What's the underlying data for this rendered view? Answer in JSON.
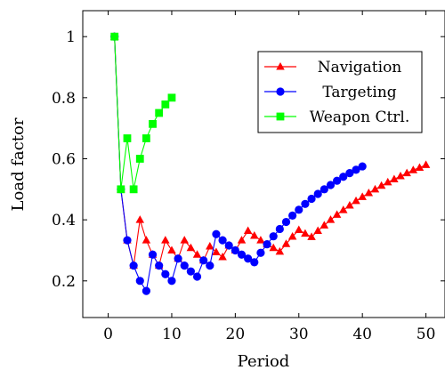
{
  "chart_data": {
    "type": "line",
    "xlabel": "Period",
    "ylabel": "Load factor",
    "xlim": [
      -4,
      53
    ],
    "ylim": [
      0.08,
      1.085
    ],
    "xticks": [
      0,
      10,
      20,
      30,
      40,
      50
    ],
    "yticks": [
      0.2,
      0.4,
      0.6,
      0.8,
      1
    ],
    "grid": false,
    "legend_position": "top-right",
    "series": [
      {
        "name": "Navigation",
        "color": "#ff0000",
        "marker": "triangle",
        "x": [
          1,
          2,
          3,
          4,
          5,
          6,
          7,
          8,
          9,
          10,
          11,
          12,
          13,
          14,
          15,
          16,
          17,
          18,
          19,
          20,
          21,
          22,
          23,
          24,
          25,
          26,
          27,
          28,
          29,
          30,
          31,
          32,
          33,
          34,
          35,
          36,
          37,
          38,
          39,
          40,
          41,
          42,
          43,
          44,
          45,
          46,
          47,
          48,
          49,
          50
        ],
        "y": [
          1.0,
          0.5,
          0.333,
          0.25,
          0.4,
          0.333,
          0.286,
          0.25,
          0.333,
          0.3,
          0.273,
          0.333,
          0.308,
          0.286,
          0.267,
          0.313,
          0.294,
          0.278,
          0.316,
          0.3,
          0.333,
          0.364,
          0.348,
          0.333,
          0.32,
          0.308,
          0.296,
          0.321,
          0.345,
          0.367,
          0.355,
          0.344,
          0.364,
          0.382,
          0.4,
          0.417,
          0.432,
          0.447,
          0.462,
          0.475,
          0.488,
          0.5,
          0.512,
          0.523,
          0.533,
          0.543,
          0.553,
          0.563,
          0.571,
          0.58
        ]
      },
      {
        "name": "Targeting",
        "color": "#0000ff",
        "marker": "circle",
        "x": [
          1,
          2,
          3,
          4,
          5,
          6,
          7,
          8,
          9,
          10,
          11,
          12,
          13,
          14,
          15,
          16,
          17,
          18,
          19,
          20,
          21,
          22,
          23,
          24,
          25,
          26,
          27,
          28,
          29,
          30,
          31,
          32,
          33,
          34,
          35,
          36,
          37,
          38,
          39,
          40
        ],
        "y": [
          1.0,
          0.5,
          0.333,
          0.25,
          0.2,
          0.167,
          0.286,
          0.25,
          0.222,
          0.2,
          0.273,
          0.25,
          0.231,
          0.214,
          0.267,
          0.25,
          0.353,
          0.333,
          0.316,
          0.3,
          0.286,
          0.273,
          0.261,
          0.292,
          0.32,
          0.346,
          0.37,
          0.393,
          0.414,
          0.433,
          0.452,
          0.469,
          0.485,
          0.5,
          0.514,
          0.528,
          0.541,
          0.553,
          0.564,
          0.575
        ]
      },
      {
        "name": "Weapon Ctrl.",
        "color": "#00ff00",
        "marker": "square",
        "x": [
          1,
          2,
          3,
          4,
          5,
          6,
          7,
          8,
          9,
          10
        ],
        "y": [
          1.0,
          0.5,
          0.667,
          0.5,
          0.6,
          0.667,
          0.714,
          0.75,
          0.778,
          0.8
        ]
      }
    ]
  }
}
